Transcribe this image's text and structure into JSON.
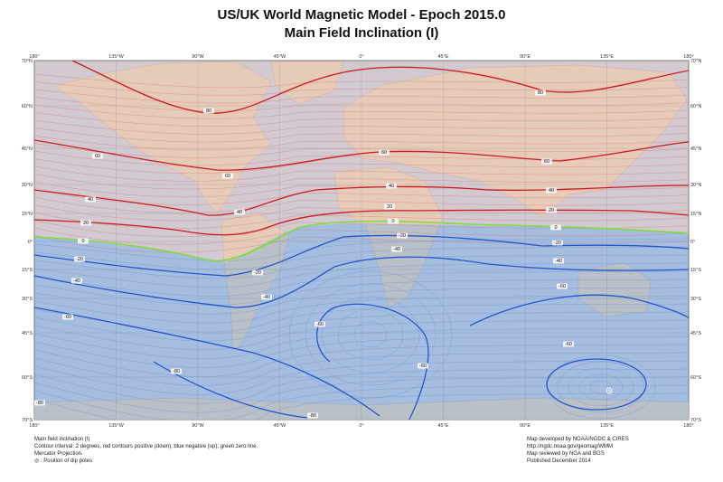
{
  "title": "US/UK World Magnetic Model - Epoch 2015.0",
  "subtitle": "Main Field Inclination (I)",
  "lon_ticks": [
    "180°",
    "135°W",
    "90°W",
    "45°W",
    "0°",
    "45°E",
    "90°E",
    "135°E",
    "180°"
  ],
  "lat_ticks": [
    "70°N",
    "60°N",
    "45°N",
    "30°N",
    "15°N",
    "0°",
    "15°S",
    "30°S",
    "45°S",
    "60°S",
    "70°S"
  ],
  "contour_labels": [
    "80",
    "60",
    "40",
    "20",
    "0",
    "-20",
    "-40",
    "-60",
    "-80"
  ],
  "colors": {
    "positive": "#cc1a1a",
    "negative": "#2255cc",
    "zero": "#7fdc3c",
    "ocean": "#c8d8e4",
    "land": "#e8dcc0"
  },
  "footer_left": [
    "Main field inclination (I)",
    "Contour interval: 2 degrees, red contours positive (down); blue negative (up); green zero line.",
    "Mercator Projection.",
    "◎ : Position of dip poles"
  ],
  "footer_right": [
    "Map developed by NOAA/NGDC & CIRES",
    "http://ngdc.noaa.gov/geomag/WMM",
    "Map reviewed by NGA and BGS",
    "Published December 2014"
  ]
}
